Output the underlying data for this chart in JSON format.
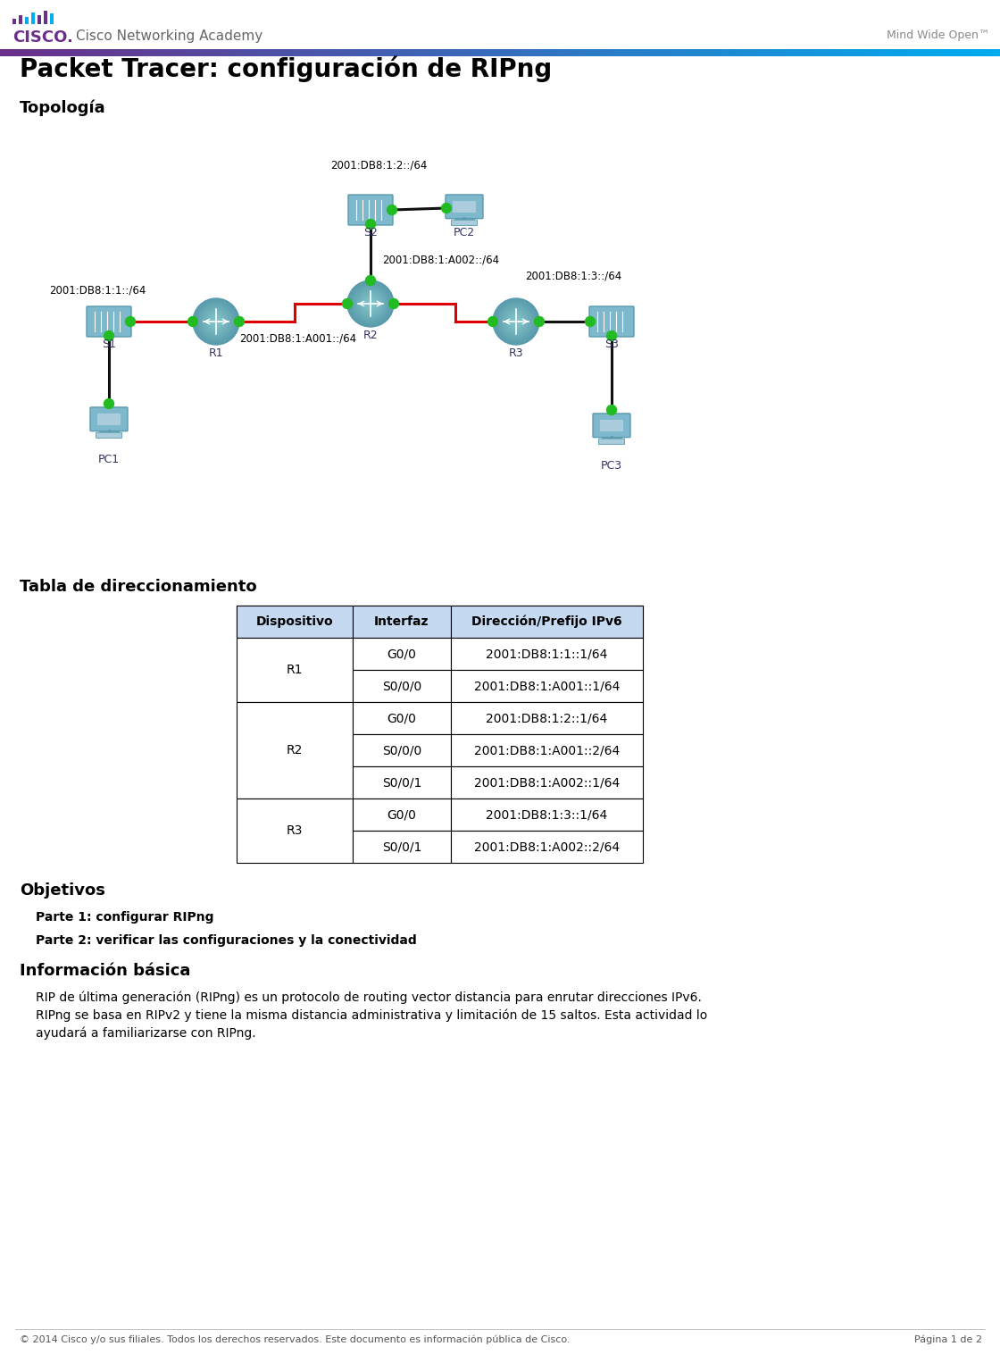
{
  "page_title": "Packet Tracer: configuración de RIPng",
  "section1": "Topología",
  "section2": "Tabla de direccionamiento",
  "section3": "Objetivos",
  "part1": "Parte 1: configurar RIPng",
  "part2": "Parte 2: verificar las configuraciones y la conectividad",
  "section4": "Información básica",
  "info_line1": "RIP de última generación (RIPng) es un protocolo de routing vector distancia para enrutar direcciones IPv6.",
  "info_line2": "RIPng se basa en RIPv2 y tiene la misma distancia administrativa y limitación de 15 saltos. Esta actividad lo",
  "info_line3": "ayudará a familiarizarse con RIPng.",
  "header_academy": "Cisco Networking Academy",
  "header_right": "Mind Wide Open™",
  "footer_text": "© 2014 Cisco y/o sus filiales. Todos los derechos reservados. Este documento es información pública de Cisco.",
  "footer_page": "Página 1 de 2",
  "table_headers": [
    "Dispositivo",
    "Interfaz",
    "Dirección/Prefijo IPv6"
  ],
  "table_data": [
    [
      "R1",
      "G0/0",
      "2001:DB8:1:1::1/64"
    ],
    [
      "R1",
      "S0/0/0",
      "2001:DB8:1:A001::1/64"
    ],
    [
      "R2",
      "G0/0",
      "2001:DB8:1:2::1/64"
    ],
    [
      "R2",
      "S0/0/0",
      "2001:DB8:1:A001::2/64"
    ],
    [
      "R2",
      "S0/0/1",
      "2001:DB8:1:A002::1/64"
    ],
    [
      "R3",
      "G0/0",
      "2001:DB8:1:3::1/64"
    ],
    [
      "R3",
      "S0/0/1",
      "2001:DB8:1:A002::2/64"
    ]
  ],
  "net_label_top": "2001:DB8:1:2::/64",
  "net_label_left": "2001:DB8:1:1::/64",
  "net_label_bot": "2001:DB8:1:A001::/64",
  "net_label_mid": "2001:DB8:1:A002::/64",
  "net_label_right": "2001:DB8:1:3::/64",
  "cisco_purple": "#6B2F8A",
  "cisco_blue": "#00ADEF",
  "device_color": "#7EB8CC",
  "device_edge": "#5A9BAD",
  "green_dot": "#22BB22",
  "table_hdr_bg": "#C5D9F1",
  "text_dark": "#1A1A1A",
  "text_gray": "#555555",
  "red_cable": "#DD0000",
  "black_cable": "#111111"
}
